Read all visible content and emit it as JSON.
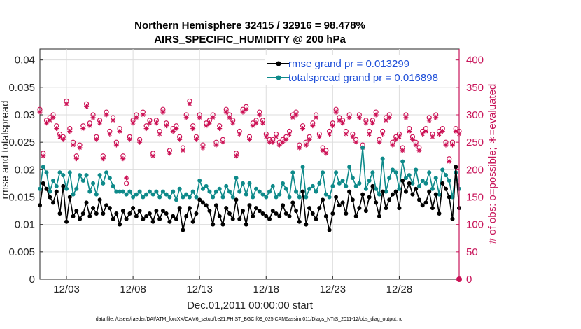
{
  "chart_data": {
    "type": "line",
    "title_line1": "Northern Hemisphere 32415 / 32916 = 98.478%",
    "title_line2": "AIRS_SPECIFIC_HUMIDITY @ 200 hPa",
    "xlabel": "Dec.01,2011 00:00:00 start",
    "ylabel_left": "rmse and totalspread",
    "ylabel_right": "# of obs: o=possible; ∗=evaluated",
    "xlim": [
      1,
      32.5
    ],
    "ylim_left": [
      0,
      0.042
    ],
    "ylim_right": [
      0,
      420
    ],
    "x_ticks": [
      {
        "x": 3,
        "label": "12/03"
      },
      {
        "x": 8,
        "label": "12/08"
      },
      {
        "x": 13,
        "label": "12/13"
      },
      {
        "x": 18,
        "label": "12/18"
      },
      {
        "x": 23,
        "label": "12/23"
      },
      {
        "x": 28,
        "label": "12/28"
      }
    ],
    "y_ticks_left": [
      {
        "v": 0,
        "label": "0"
      },
      {
        "v": 0.005,
        "label": "0.005"
      },
      {
        "v": 0.01,
        "label": "0.01"
      },
      {
        "v": 0.015,
        "label": "0.015"
      },
      {
        "v": 0.02,
        "label": "0.02"
      },
      {
        "v": 0.025,
        "label": "0.025"
      },
      {
        "v": 0.03,
        "label": "0.03"
      },
      {
        "v": 0.035,
        "label": "0.035"
      },
      {
        "v": 0.04,
        "label": "0.04"
      }
    ],
    "y_ticks_right": [
      {
        "v": 0,
        "label": "0"
      },
      {
        "v": 50,
        "label": "50"
      },
      {
        "v": 100,
        "label": "100"
      },
      {
        "v": 150,
        "label": "150"
      },
      {
        "v": 200,
        "label": "200"
      },
      {
        "v": 250,
        "label": "250"
      },
      {
        "v": 300,
        "label": "300"
      },
      {
        "v": 350,
        "label": "350"
      },
      {
        "v": 400,
        "label": "400"
      }
    ],
    "x_start": 1.0,
    "x_step": 0.25,
    "series": [
      {
        "name": "rmse grand pr = 0.013299",
        "color": "#000000",
        "axis": "left",
        "values": [
          0.0135,
          0.0175,
          0.0165,
          0.015,
          0.014,
          0.016,
          0.012,
          0.017,
          0.0105,
          0.015,
          0.0115,
          0.0125,
          0.011,
          0.012,
          0.014,
          0.0115,
          0.013,
          0.012,
          0.0145,
          0.012,
          0.0135,
          0.013,
          0.011,
          0.012,
          0.01,
          0.0125,
          0.011,
          0.012,
          0.013,
          0.0115,
          0.0125,
          0.011,
          0.0115,
          0.012,
          0.0105,
          0.0125,
          0.011,
          0.0125,
          0.012,
          0.0105,
          0.0115,
          0.011,
          0.013,
          0.009,
          0.0115,
          0.013,
          0.0105,
          0.012,
          0.0145,
          0.014,
          0.0135,
          0.0125,
          0.01,
          0.0135,
          0.0115,
          0.01,
          0.013,
          0.012,
          0.011,
          0.0145,
          0.011,
          0.0125,
          0.01,
          0.0135,
          0.0115,
          0.013,
          0.0125,
          0.012,
          0.0115,
          0.011,
          0.0125,
          0.012,
          0.0115,
          0.0135,
          0.012,
          0.0115,
          0.014,
          0.0125,
          0.0105,
          0.016,
          0.01,
          0.013,
          0.012,
          0.011,
          0.013,
          0.0145,
          0.0115,
          0.009,
          0.012,
          0.015,
          0.0135,
          0.014,
          0.012,
          0.016,
          0.0145,
          0.0115,
          0.013,
          0.0155,
          0.0125,
          0.015,
          0.017,
          0.014,
          0.0115,
          0.016,
          0.013,
          0.0145,
          0.0155,
          0.016,
          0.013,
          0.018,
          0.016,
          0.0175,
          0.0155,
          0.0165,
          0.0145,
          0.0135,
          0.014,
          0.016,
          0.013,
          0.0155,
          0.012,
          0.0175,
          0.0165,
          0.015,
          0.011,
          0.0205,
          0.013,
          0.012
        ]
      },
      {
        "name": "totalspread grand pr = 0.016898",
        "color": "#0e8a8a",
        "axis": "left",
        "values": [
          0.0165,
          0.0205,
          0.0195,
          0.016,
          0.018,
          0.017,
          0.0195,
          0.019,
          0.0165,
          0.0195,
          0.0155,
          0.0165,
          0.019,
          0.018,
          0.019,
          0.016,
          0.0175,
          0.0155,
          0.019,
          0.0175,
          0.0195,
          0.0185,
          0.017,
          0.016,
          0.016,
          0.016,
          0.0155,
          0.016,
          0.015,
          0.0155,
          0.016,
          0.015,
          0.0155,
          0.016,
          0.0155,
          0.016,
          0.015,
          0.016,
          0.0155,
          0.015,
          0.016,
          0.0145,
          0.0165,
          0.015,
          0.0155,
          0.015,
          0.016,
          0.015,
          0.018,
          0.0165,
          0.017,
          0.016,
          0.015,
          0.016,
          0.0165,
          0.015,
          0.017,
          0.016,
          0.015,
          0.0185,
          0.016,
          0.0175,
          0.0155,
          0.0175,
          0.015,
          0.0165,
          0.016,
          0.0155,
          0.015,
          0.016,
          0.017,
          0.015,
          0.0155,
          0.0175,
          0.0165,
          0.015,
          0.0195,
          0.016,
          0.015,
          0.0205,
          0.015,
          0.0165,
          0.017,
          0.016,
          0.0175,
          0.0195,
          0.0155,
          0.015,
          0.017,
          0.0195,
          0.0175,
          0.018,
          0.017,
          0.0205,
          0.0185,
          0.017,
          0.0175,
          0.024,
          0.0165,
          0.018,
          0.0195,
          0.0165,
          0.0155,
          0.022,
          0.016,
          0.0185,
          0.02,
          0.0195,
          0.0165,
          0.0215,
          0.0185,
          0.019,
          0.0175,
          0.02,
          0.017,
          0.018,
          0.0175,
          0.0195,
          0.0165,
          0.0185,
          0.0155,
          0.02,
          0.019,
          0.018,
          0.015,
          0.0195,
          0.0165,
          0.0165
        ]
      }
    ],
    "obs_possible": [
      310,
      230,
      290,
      295,
      300,
      280,
      265,
      260,
      325,
      275,
      250,
      225,
      245,
      280,
      320,
      285,
      300,
      260,
      290,
      225,
      305,
      270,
      295,
      250,
      275,
      225,
      175,
      260,
      290,
      300,
      255,
      305,
      280,
      290,
      230,
      290,
      270,
      310,
      285,
      235,
      275,
      280,
      260,
      240,
      300,
      325,
      280,
      260,
      300,
      245,
      285,
      290,
      300,
      250,
      280,
      255,
      310,
      300,
      290,
      230,
      270,
      310,
      315,
      260,
      285,
      290,
      305,
      290,
      265,
      255,
      255,
      265,
      250,
      255,
      260,
      270,
      300,
      305,
      245,
      280,
      250,
      260,
      285,
      300,
      265,
      240,
      235,
      270,
      285,
      310,
      295,
      290,
      270,
      300,
      265,
      255,
      300,
      245,
      290,
      270,
      290,
      305,
      255,
      270,
      295,
      300,
      250,
      260,
      265,
      240,
      300,
      275,
      260,
      250,
      240,
      270,
      275,
      295,
      265,
      300,
      270,
      275,
      250,
      220,
      250,
      275,
      270,
      280
    ],
    "obs_evaluated": [
      305,
      225,
      285,
      290,
      295,
      275,
      260,
      255,
      320,
      270,
      245,
      220,
      240,
      275,
      315,
      280,
      295,
      255,
      285,
      220,
      300,
      265,
      290,
      245,
      270,
      220,
      185,
      255,
      285,
      295,
      250,
      300,
      275,
      285,
      225,
      285,
      265,
      305,
      280,
      230,
      270,
      275,
      255,
      235,
      295,
      320,
      275,
      255,
      295,
      240,
      280,
      285,
      295,
      245,
      275,
      250,
      305,
      295,
      285,
      225,
      265,
      305,
      310,
      255,
      280,
      285,
      300,
      285,
      260,
      250,
      250,
      260,
      245,
      250,
      255,
      265,
      295,
      300,
      240,
      275,
      245,
      255,
      280,
      295,
      260,
      235,
      230,
      265,
      280,
      305,
      290,
      285,
      265,
      295,
      260,
      250,
      295,
      240,
      285,
      265,
      285,
      300,
      250,
      265,
      290,
      295,
      245,
      255,
      260,
      235,
      295,
      270,
      255,
      245,
      235,
      265,
      270,
      290,
      260,
      295,
      265,
      270,
      245,
      215,
      245,
      270,
      265,
      275
    ],
    "obs_color": "#cc1155",
    "footnote": "data file: /Users/raeder/DAI/ATM_forcXX/CAM6_setup/f.e21.FHIST_BGC.f09_025.CAM6assim.011/Diags_NTrS_2011-12/obs_diag_output.nc"
  }
}
